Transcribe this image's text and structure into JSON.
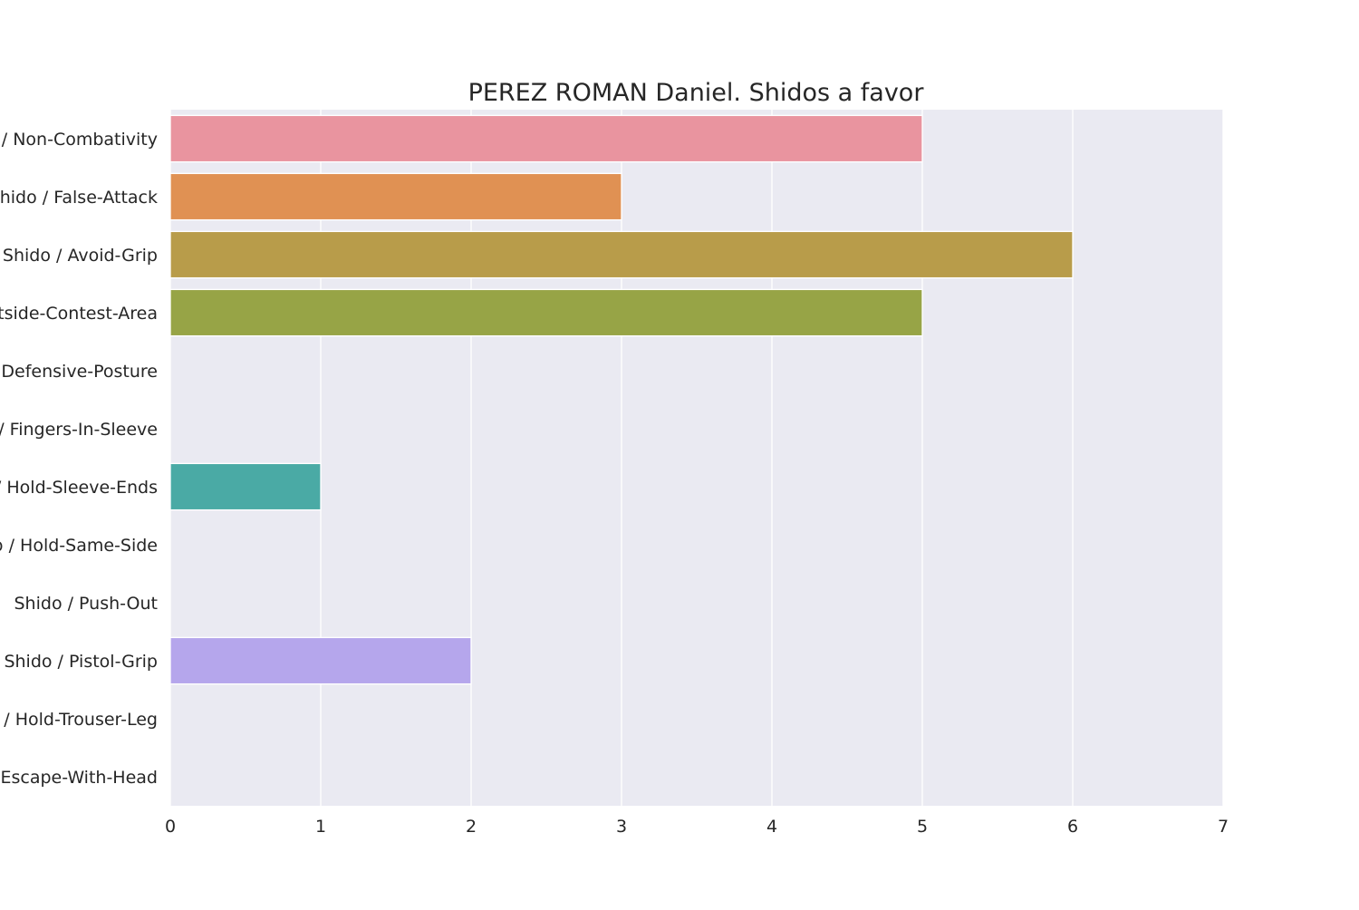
{
  "chart_data": {
    "type": "bar",
    "orientation": "horizontal",
    "title": "PEREZ ROMAN Daniel. Shidos a favor",
    "xlabel": "",
    "ylabel": "",
    "xlim": [
      0,
      7
    ],
    "xticks": [
      0,
      1,
      2,
      3,
      4,
      5,
      6,
      7
    ],
    "grid": true,
    "categories": [
      "Shido / Non-Combativity",
      "Shido / False-Attack",
      "Shido / Avoid-Grip",
      "Shido / Outside-Contest-Area",
      "Shido / Defensive-Posture",
      "Shido / Fingers-In-Sleeve",
      "Shido / Hold-Sleeve-Ends",
      "Shido / Hold-Same-Side",
      "Shido / Push-Out",
      "Shido / Pistol-Grip",
      "Shido / Hold-Trouser-Leg",
      "Shido / Escape-With-Head"
    ],
    "values": [
      5,
      3,
      6,
      5,
      0,
      0,
      1,
      0,
      0,
      2,
      0,
      0
    ],
    "colors": [
      "#e9949f",
      "#e09153",
      "#b89c4a",
      "#97a446",
      "#5db06e",
      "#52ad8e",
      "#4aaaa5",
      "#4ea8bb",
      "#81a8e7",
      "#b5a6ec",
      "#e18ee6",
      "#e891c2"
    ],
    "background": "#eaeaf2",
    "grid_color": "#ffffff"
  }
}
